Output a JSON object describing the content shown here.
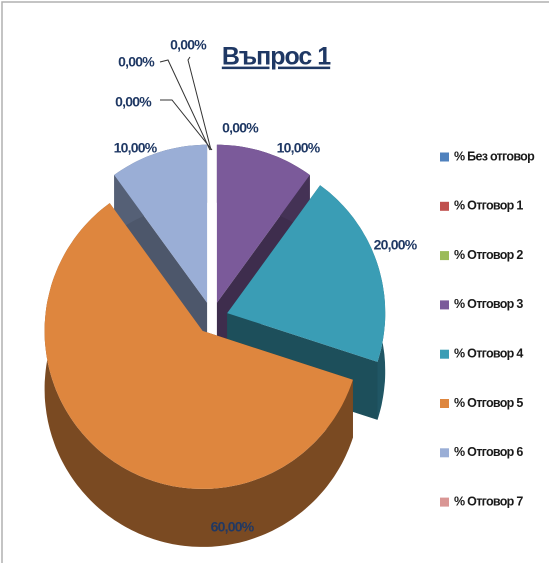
{
  "chart_data": {
    "type": "pie3d",
    "title": "Въпрос 1",
    "categories": [
      "% Без отговор",
      "% Отговор 1",
      "% Отговор 2",
      "% Отговор 3",
      "% Отговор 4",
      "% Отговор 5",
      "% Отговор 6",
      "% Отговор 7"
    ],
    "values": [
      0,
      0,
      0,
      10,
      20,
      60,
      10,
      0
    ],
    "value_labels": [
      "0,00%",
      "0,00%",
      "0,00%",
      "10,00%",
      "20,00%",
      "60,00%",
      "10,00%",
      "0,00%"
    ],
    "colors": [
      "#4f81bd",
      "#c0504d",
      "#9bbb59",
      "#7b5a9a",
      "#3a9db5",
      "#de863e",
      "#9aaed6",
      "#d99694"
    ],
    "legend": "right"
  }
}
